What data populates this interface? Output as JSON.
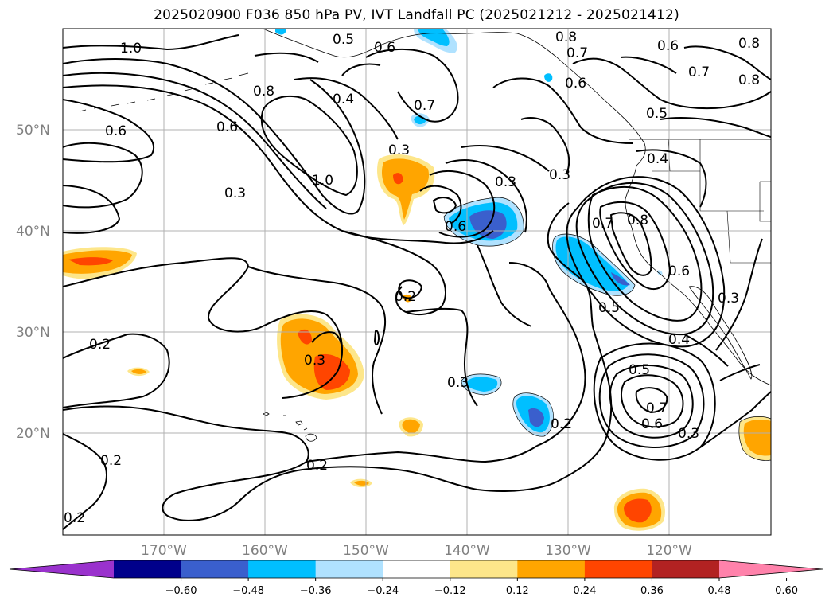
{
  "title": "2025020900 F036 850 hPa PV, IVT Landfall PC (2025021212 - 2025021412)",
  "lat_labels": [
    "50°N",
    "40°N",
    "30°N",
    "20°N"
  ],
  "lon_labels": [
    "170°W",
    "160°W",
    "150°W",
    "140°W",
    "130°W",
    "120°W"
  ],
  "contour_labels": [
    "1.0",
    "0.5",
    "0.6",
    "0.8",
    "0.7",
    "0.6",
    "0.8",
    "0.8",
    "0.7",
    "0.6",
    "0.4",
    "0.8",
    "0.6",
    "0.6",
    "0.7",
    "0.5",
    "0.3",
    "1.0",
    "0.3",
    "0.3",
    "0.4",
    "0.3",
    "0.6",
    "0.7",
    "0.8",
    "0.6",
    "0.5",
    "0.3",
    "0.2",
    "0.3",
    "0.3",
    "0.4",
    "0.5",
    "0.7",
    "0.6",
    "0.3",
    "0.2",
    "0.2",
    "0.2",
    "0.2",
    "0.2"
  ],
  "colorbar": {
    "ticks": [
      "−0.60",
      "−0.48",
      "−0.36",
      "−0.24",
      "−0.12",
      "0.12",
      "0.24",
      "0.36",
      "0.48",
      "0.60"
    ],
    "colors": [
      "#9a32cd",
      "#00008b",
      "#3a5fcd",
      "#00bfff",
      "#b0e2ff",
      "#ffffff",
      "#fde68a",
      "#ffa500",
      "#ff4500",
      "#b22222",
      "#ff82ab"
    ],
    "extend": "both"
  },
  "colors": {
    "gridline": "#b0b0b0",
    "contour": "#000000",
    "axis_text": "#808080"
  }
}
